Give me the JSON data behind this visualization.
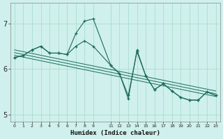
{
  "xlabel": "Humidex (Indice chaleur)",
  "bg_color": "#cff0ec",
  "grid_color": "#aaddcc",
  "line_color": "#1a6b5a",
  "xlim": [
    -0.5,
    23.5
  ],
  "ylim": [
    4.85,
    7.45
  ],
  "yticks": [
    5,
    6,
    7
  ],
  "xticks": [
    0,
    1,
    2,
    3,
    4,
    5,
    6,
    7,
    8,
    9,
    11,
    12,
    13,
    14,
    15,
    16,
    17,
    18,
    19,
    20,
    21,
    22,
    23
  ],
  "line1_x": [
    0,
    1,
    2,
    3,
    4,
    5,
    6,
    7,
    8,
    9,
    11,
    12,
    13,
    14,
    15,
    16,
    17,
    18,
    19,
    20,
    21,
    22,
    23
  ],
  "line1_y": [
    6.25,
    6.3,
    6.42,
    6.5,
    6.35,
    6.35,
    6.32,
    6.5,
    6.62,
    6.5,
    6.08,
    5.9,
    5.42,
    6.38,
    5.85,
    5.55,
    5.68,
    5.52,
    5.38,
    5.32,
    5.32,
    5.5,
    5.42
  ],
  "line2_x": [
    0,
    1,
    2,
    3,
    4,
    5,
    6,
    7,
    8,
    9,
    11,
    12,
    13,
    14,
    15,
    16,
    17,
    18,
    19,
    20,
    21,
    22,
    23
  ],
  "line2_y": [
    6.25,
    6.3,
    6.42,
    6.5,
    6.35,
    6.35,
    6.32,
    6.78,
    7.05,
    7.1,
    6.08,
    5.9,
    5.35,
    6.42,
    5.85,
    5.55,
    5.68,
    5.52,
    5.38,
    5.32,
    5.32,
    5.5,
    5.42
  ],
  "trend1_x": [
    0,
    23
  ],
  "trend1_y": [
    6.42,
    5.52
  ],
  "trend2_x": [
    0,
    23
  ],
  "trend2_y": [
    6.36,
    5.46
  ],
  "trend3_x": [
    0,
    23
  ],
  "trend3_y": [
    6.3,
    5.4
  ]
}
